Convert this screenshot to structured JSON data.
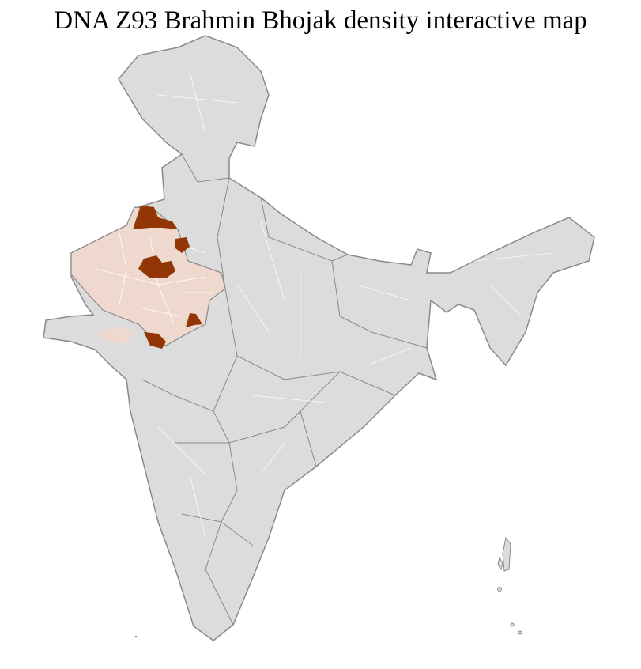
{
  "title": "DNA Z93 Brahmin Bhojak density interactive map",
  "colors": {
    "base": "#dcdcdc",
    "low_density": "#efd8cd",
    "high_density": "#923606",
    "state_border": "#8a8a8a",
    "district_border": "#ffffff"
  },
  "regions": [
    {
      "name": "Rajasthan",
      "level": "low"
    },
    {
      "name": "Gujarat (north)",
      "level": "low"
    },
    {
      "name": "Rajasthan north districts",
      "level": "high"
    },
    {
      "name": "Rajasthan central district",
      "level": "high"
    },
    {
      "name": "Rajasthan north-east district",
      "level": "high"
    },
    {
      "name": "Rajasthan south districts",
      "level": "high"
    },
    {
      "name": "Rajasthan south-east district",
      "level": "high"
    }
  ]
}
